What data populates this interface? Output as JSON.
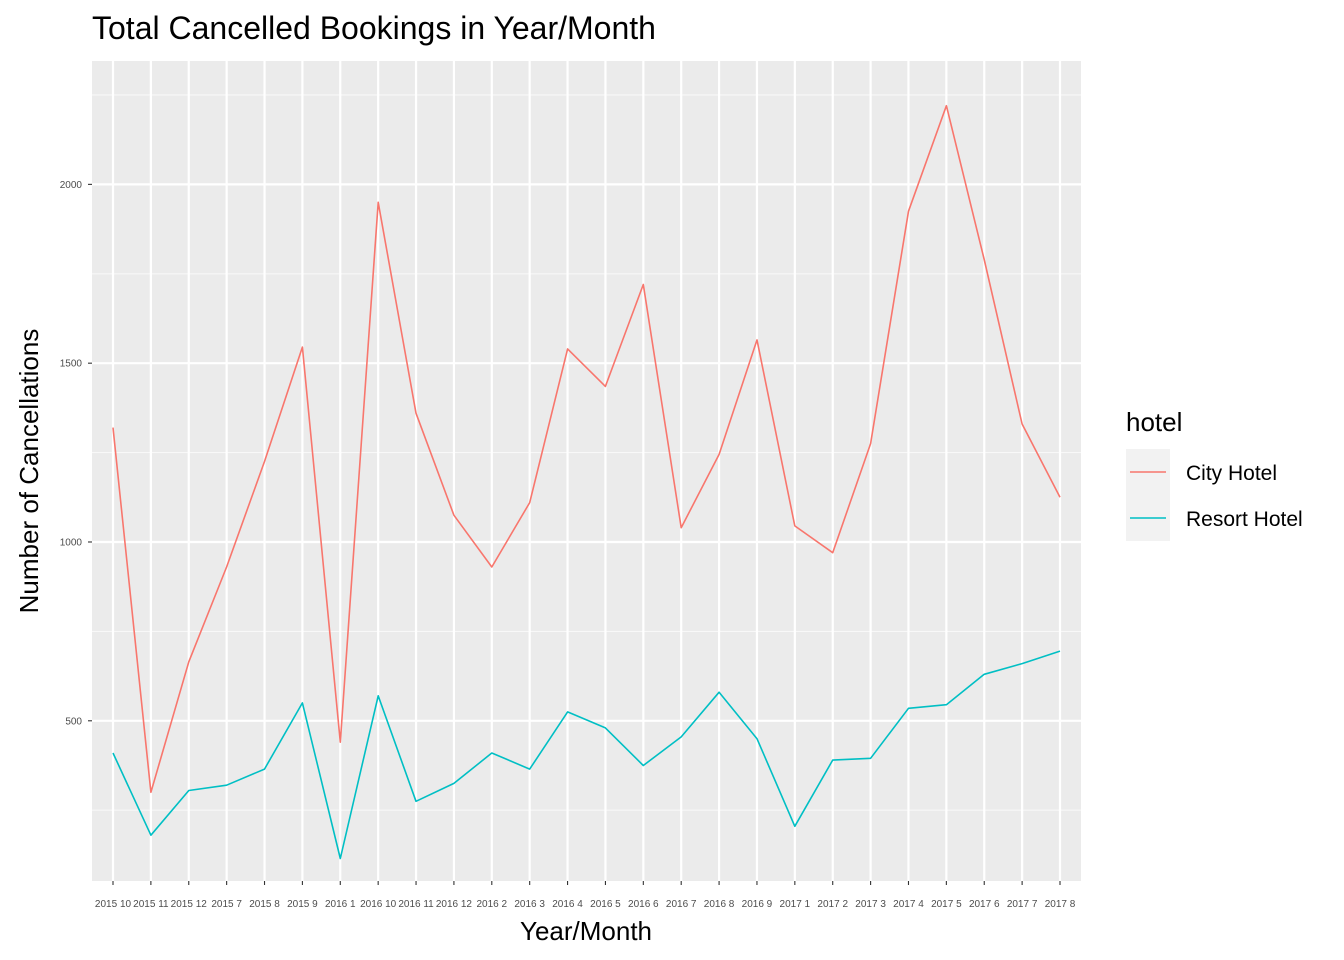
{
  "chart_data": {
    "type": "line",
    "title": "Total Cancelled Bookings in Year/Month",
    "xlabel": "Year/Month",
    "ylabel": "Number of Cancellations",
    "categories": [
      "2015 10",
      "2015 11",
      "2015 12",
      "2015 7",
      "2015 8",
      "2015 9",
      "2016 1",
      "2016 10",
      "2016 11",
      "2016 12",
      "2016 2",
      "2016 3",
      "2016 4",
      "2016 5",
      "2016 6",
      "2016 7",
      "2016 8",
      "2016 9",
      "2017 1",
      "2017 2",
      "2017 3",
      "2017 4",
      "2017 5",
      "2017 6",
      "2017 7",
      "2017 8"
    ],
    "series": [
      {
        "name": "City Hotel",
        "color": "#F8766D",
        "values": [
          1320,
          300,
          665,
          930,
          1225,
          1545,
          440,
          1950,
          1360,
          1075,
          930,
          1110,
          1540,
          1435,
          1720,
          1040,
          1245,
          1565,
          1045,
          970,
          1275,
          1925,
          2220,
          1790,
          1330,
          1125
        ]
      },
      {
        "name": "Resort Hotel",
        "color": "#00BFC4",
        "values": [
          410,
          180,
          305,
          320,
          365,
          550,
          115,
          570,
          275,
          325,
          410,
          365,
          525,
          480,
          375,
          455,
          580,
          450,
          205,
          390,
          395,
          535,
          545,
          630,
          660,
          695
        ]
      }
    ],
    "yticks": [
      500,
      1000,
      1500,
      2000
    ],
    "ylim": [
      52,
      2345
    ],
    "grid": true,
    "legend": {
      "title": "hotel",
      "placement": "right"
    }
  }
}
